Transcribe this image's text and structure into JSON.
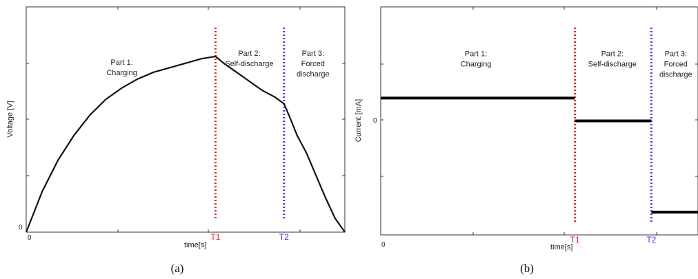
{
  "chart_data": [
    {
      "type": "line",
      "caption": "(a)",
      "xlabel": "time[s]",
      "ylabel": "Voltage [V]",
      "x_ticks": [
        "0"
      ],
      "y_ticks": [
        "0"
      ],
      "markers": [
        {
          "label": "T1",
          "x": 0.594,
          "color": "#e8262d"
        },
        {
          "label": "T2",
          "x": 0.809,
          "color": "#3d3df2"
        }
      ],
      "parts": [
        {
          "lines": [
            "Part 1:",
            "Charging"
          ],
          "x": 0.3,
          "y": 0.88
        },
        {
          "lines": [
            "Part 2:",
            "Self-discharge"
          ],
          "x": 0.7,
          "y": 0.92
        },
        {
          "lines": [
            "Part 3:",
            "Forced",
            "discharge"
          ],
          "x": 0.9,
          "y": 0.92
        }
      ],
      "xlim": [
        0,
        1
      ],
      "ylim": [
        0,
        1
      ],
      "series": [
        {
          "color": "#111111",
          "x": [
            0,
            0.05,
            0.1,
            0.15,
            0.2,
            0.25,
            0.3,
            0.35,
            0.4,
            0.45,
            0.5,
            0.55,
            0.594,
            0.62,
            0.66,
            0.7,
            0.74,
            0.78,
            0.809,
            0.83,
            0.85,
            0.88,
            0.91,
            0.94,
            0.97,
            1.0
          ],
          "y": [
            0,
            0.18,
            0.32,
            0.43,
            0.52,
            0.59,
            0.64,
            0.68,
            0.71,
            0.73,
            0.75,
            0.77,
            0.78,
            0.75,
            0.71,
            0.67,
            0.63,
            0.6,
            0.57,
            0.5,
            0.43,
            0.35,
            0.25,
            0.15,
            0.06,
            0
          ]
        }
      ]
    },
    {
      "type": "line",
      "caption": "(b)",
      "xlabel": "time[s]",
      "ylabel": "Current [mA]",
      "x_ticks": [
        "0"
      ],
      "y_ticks": [
        "0"
      ],
      "markers": [
        {
          "label": "T1",
          "x": 0.612,
          "color": "#e8262d"
        },
        {
          "label": "T2",
          "x": 0.853,
          "color": "#3d3df2"
        }
      ],
      "parts": [
        {
          "lines": [
            "Part 1:",
            "Charging"
          ],
          "x": 0.3,
          "y": 0.92
        },
        {
          "lines": [
            "Part 2:",
            "Self-discharge"
          ],
          "x": 0.73,
          "y": 0.92
        },
        {
          "lines": [
            "Part 3:",
            "Forced",
            "discharge"
          ],
          "x": 0.93,
          "y": 0.92
        }
      ],
      "xlim": [
        0,
        1
      ],
      "ylim": [
        -1,
        1
      ],
      "series": [
        {
          "color": "#000000",
          "x": [
            0,
            0.612,
            null,
            0.612,
            0.853,
            null,
            0.853,
            1.0
          ],
          "y": [
            0.2,
            0.2,
            null,
            0.0,
            0.0,
            null,
            -0.8,
            -0.8
          ]
        }
      ]
    }
  ]
}
